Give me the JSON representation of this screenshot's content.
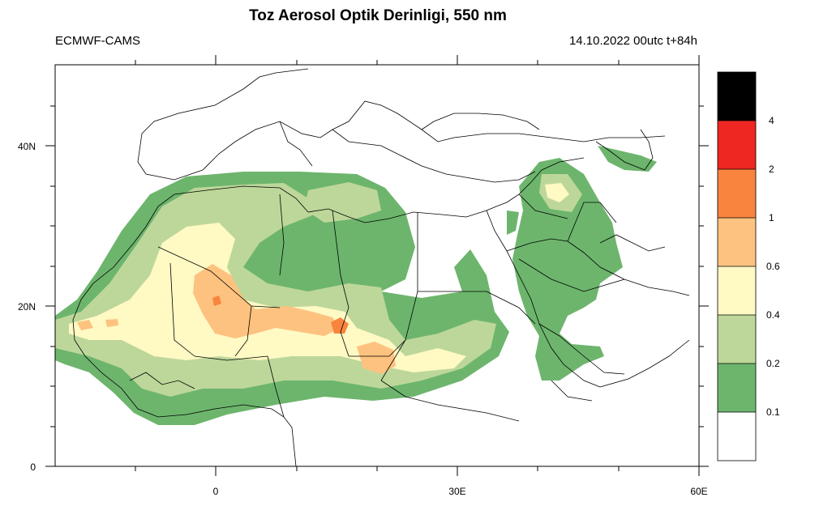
{
  "title": "Toz Aerosol Optik Derinligi, 550 nm",
  "model_label": "ECMWF-CAMS",
  "run_label": "14.10.2022 00utc t+84h",
  "map": {
    "lon_range": [
      -20,
      60
    ],
    "lat_range": [
      0,
      50
    ],
    "x_ticks": [
      {
        "value": 0,
        "label": "0"
      },
      {
        "value": 30,
        "label": "30E"
      },
      {
        "value": 60,
        "label": "60E"
      }
    ],
    "y_ticks": [
      {
        "value": 0,
        "label": "0"
      },
      {
        "value": 20,
        "label": "20N"
      },
      {
        "value": 40,
        "label": "40N"
      }
    ]
  },
  "colorbar": {
    "levels": [
      "0.1",
      "0.2",
      "0.4",
      "0.6",
      "1",
      "2",
      "4"
    ],
    "colors": [
      "#ffffff",
      "#6db56d",
      "#bdd79a",
      "#fff9c4",
      "#fdc27f",
      "#f9843e",
      "#ee2722",
      "#000000"
    ]
  }
}
